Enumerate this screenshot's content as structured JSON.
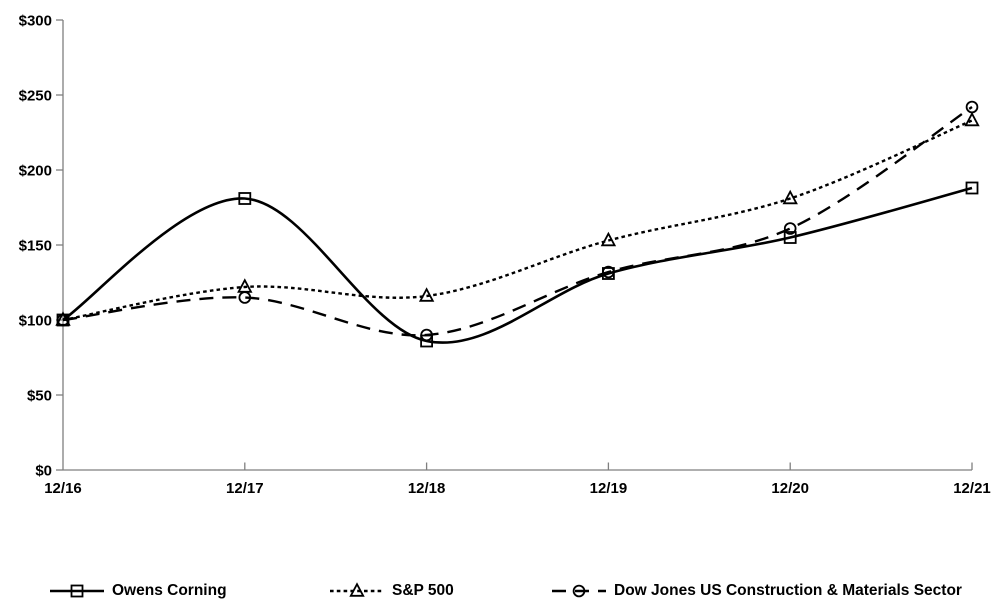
{
  "chart_data": {
    "type": "line",
    "title": "",
    "xlabel": "",
    "ylabel": "",
    "x_categories": [
      "12/16",
      "12/17",
      "12/18",
      "12/19",
      "12/20",
      "12/21"
    ],
    "y_tick_labels": [
      "$0",
      "$50",
      "$100",
      "$150",
      "$200",
      "$250",
      "$300"
    ],
    "ylim": [
      0,
      300
    ],
    "y_tick_step": 50,
    "grid": false,
    "legend_position": "bottom",
    "smoothed_lines": true,
    "axis_color": "#7f7f7f",
    "label_color": "#000000",
    "background_color": "#ffffff",
    "series": [
      {
        "name": "Owens Corning",
        "line_style": "solid",
        "marker": "square",
        "color": "#000000",
        "values": [
          100,
          181,
          86,
          131,
          155,
          188
        ]
      },
      {
        "name": "S&P 500",
        "line_style": "short-dash",
        "marker": "triangle",
        "color": "#000000",
        "values": [
          100,
          122,
          116,
          153,
          181,
          233
        ]
      },
      {
        "name": "Dow Jones US Construction & Materials Sector",
        "line_style": "long-dash",
        "marker": "circle",
        "color": "#000000",
        "values": [
          100,
          115,
          90,
          132,
          161,
          242
        ]
      }
    ]
  }
}
